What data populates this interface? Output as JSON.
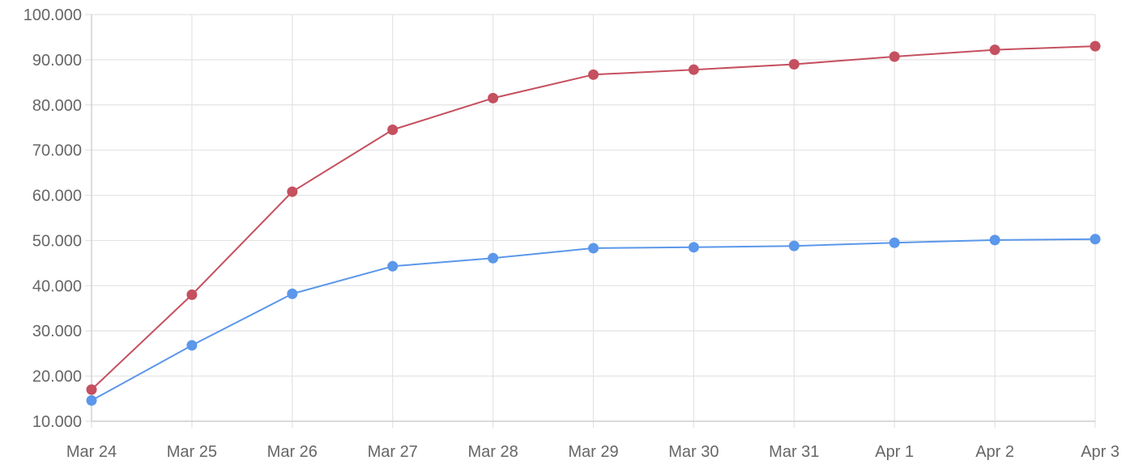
{
  "chart_data": {
    "type": "line",
    "title": "",
    "xlabel": "",
    "ylabel": "",
    "categories": [
      "Mar 24",
      "Mar 25",
      "Mar 26",
      "Mar 27",
      "Mar 28",
      "Mar 29",
      "Mar 30",
      "Mar 31",
      "Apr 1",
      "Apr 2",
      "Apr 3"
    ],
    "ylim": [
      10000,
      100000
    ],
    "yticks": [
      10000,
      20000,
      30000,
      40000,
      50000,
      60000,
      70000,
      80000,
      90000,
      100000
    ],
    "ytick_labels": [
      "10.000",
      "20.000",
      "30.000",
      "40.000",
      "50.000",
      "60.000",
      "70.000",
      "80.000",
      "90.000",
      "100.000"
    ],
    "grid": true,
    "legend": "none",
    "series": [
      {
        "color": "#c5505f",
        "values": [
          17000,
          38000,
          60800,
          74500,
          81500,
          86700,
          87800,
          89000,
          90700,
          92200,
          93000
        ]
      },
      {
        "color": "#5b97ea",
        "values": [
          14600,
          26800,
          38200,
          44300,
          46100,
          48300,
          48500,
          48800,
          49500,
          50100,
          50300
        ]
      }
    ]
  }
}
